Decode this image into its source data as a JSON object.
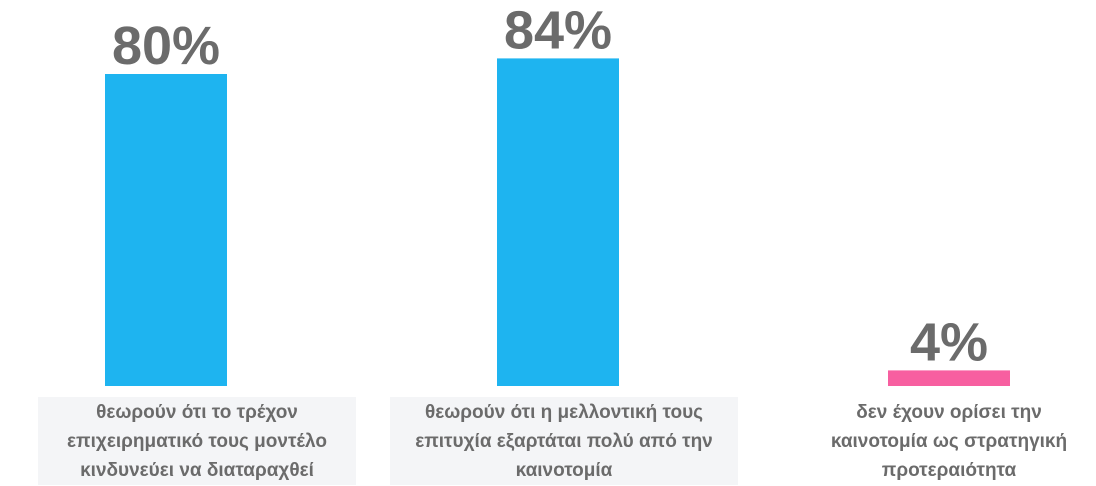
{
  "chart_data": {
    "type": "bar",
    "categories": [
      "θεωρούν ότι το τρέχον\nεπιχειρηματικό τους μοντέλο\nκινδυνεύει να διαταραχθεί",
      "θεωρούν ότι η μελλοντική τους\nεπιτυχία εξαρτάται πολύ από την\nκαινοτομία",
      "δεν έχουν ορίσει την\nκαινοτομία ως στρατηγική\nπροτεραιότητα"
    ],
    "values": [
      80,
      84,
      4
    ],
    "value_labels": [
      "80%",
      "84%",
      "4%"
    ],
    "bar_colors": [
      "#1eb4f0",
      "#1eb4f0",
      "#f75fa0"
    ],
    "label_color": "#6b6b6b",
    "category_box_colors": [
      "#f4f5f7",
      "#f4f5f7",
      "#ffffff"
    ],
    "ylim": [
      0,
      100
    ],
    "grid": false,
    "legend": "none"
  }
}
